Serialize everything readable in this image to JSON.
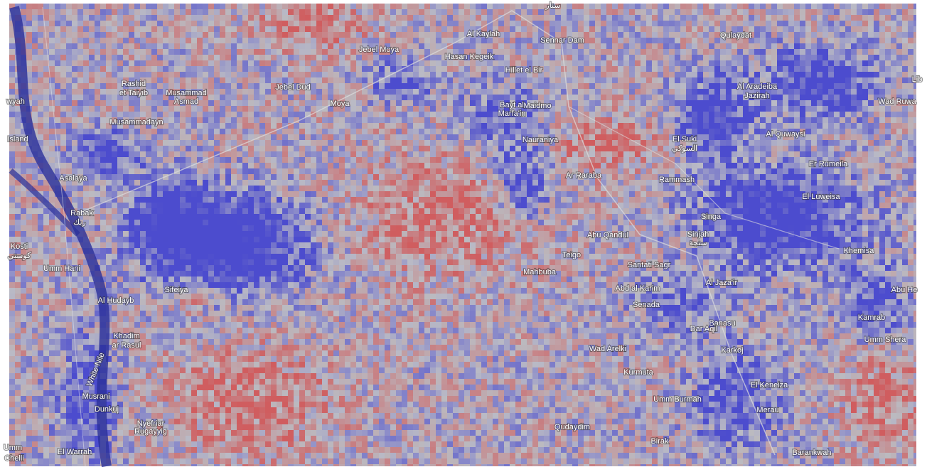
{
  "map": {
    "labels": [
      "سنار",
      "Al Kaylah",
      "Sennar Dam",
      "Jebel Moya",
      "Hasan Kegeik",
      "Hillet el Bir",
      "Qulaydat",
      "Rashid",
      "et Taiyib",
      "Musammad",
      "Asmad",
      "Jebel Dud",
      "Moya",
      "Bayt al",
      "Marfa'in",
      "Maidmo",
      "Al Aradeiba",
      "Jazirah",
      "Wad Ruwa",
      "Lib",
      "wyah",
      "Musammadayn",
      "Nauraniya",
      "El Suki",
      "السوكي",
      "Al Quwaysi",
      "Island",
      "Er Rumeila",
      "Asalaya",
      "Ar Raraba",
      "Rammash",
      "El Luweisa",
      "Rabak",
      "ربك",
      "Singa",
      "Abu Qandul",
      "Sinjah",
      "سنجة",
      "Kosti",
      "كوستي",
      "Khemisa",
      "Teigo",
      "Umm Hani",
      "Santati Sagr",
      "Mahbuba",
      "Al Jaza'ir",
      "Abd al Karim",
      "Abu He",
      "Sifeiya",
      "Al Hudayb",
      "Senada",
      "Kamrab",
      "Banasu",
      "Dar Aqil",
      "Khadim",
      "ar Rasul",
      "Umm Shera",
      "Karkoj",
      "Wad Arelki",
      "White Nile",
      "Kurmuta",
      "El Keneiza",
      "Musrani",
      "Umm Burmah",
      "Dunkuj",
      "Merau",
      "Nyefriar",
      "Rugayyig",
      "Qudaydim",
      "Birak",
      "El Warrah",
      "Umm",
      "Chelli",
      "Barankwah"
    ]
  }
}
